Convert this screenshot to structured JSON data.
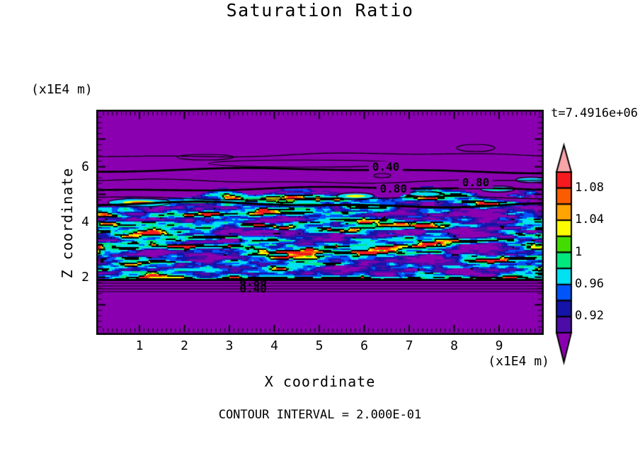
{
  "figure": {
    "title": "Saturation Ratio",
    "time_annotation": "t=7.4916e+06",
    "y_axis_unit": "(x1E4 m)",
    "x_axis_unit": "(x1E4 m)",
    "y_axis_label": "Z coordinate",
    "x_axis_label": "X coordinate",
    "contour_note": "CONTOUR INTERVAL = 2.000E-01"
  },
  "chart_data": {
    "type": "heatmap",
    "title": "Saturation Ratio",
    "xlabel": "X coordinate",
    "ylabel": "Z coordinate",
    "x_unit": "(x1E4 m)",
    "y_unit": "(x1E4 m)",
    "time_annotation": "t=7.4916e+06",
    "contour_interval": "2.000E-01",
    "xlim": [
      0,
      10
    ],
    "ylim": [
      0,
      8
    ],
    "x_ticks": [
      1,
      2,
      3,
      4,
      5,
      6,
      7,
      8,
      9
    ],
    "y_ticks": [
      2,
      4,
      6
    ],
    "grid": false,
    "legend_position": "right-colorbar",
    "colorbar": {
      "tick_labels": [
        "1.08",
        "1.04",
        "1",
        "0.96",
        "0.92"
      ],
      "tick_boundary_indices": [
        1,
        3,
        5,
        7,
        9
      ],
      "segment_value_step": 0.02,
      "segments_top_to_bottom": [
        "#F51A1E",
        "#FB5C00",
        "#FFA400",
        "#FCFC00",
        "#44DC00",
        "#00E87E",
        "#00E1F2",
        "#0055FA",
        "#1414A8",
        "#4B0CA8"
      ],
      "over_arrow_color": "#F8A4A8",
      "under_arrow_color": "#8A00B0"
    },
    "background_value_color": "#8A00B0",
    "contour_line_color": "#000000",
    "contour_labels": [
      {
        "text": "0.40",
        "x": 6.48,
        "z": 5.99,
        "region": "upper"
      },
      {
        "text": "0.80",
        "x": 6.65,
        "z": 5.19,
        "region": "upper"
      },
      {
        "text": "0.80",
        "x": 8.48,
        "z": 5.42,
        "region": "upper"
      },
      {
        "text": "0.80",
        "x": 3.53,
        "z": 1.81,
        "region": "lower"
      },
      {
        "text": "0.40",
        "x": 3.53,
        "z": 1.58,
        "region": "lower"
      }
    ],
    "field_summary": {
      "description": "Turbulent high-saturation band of horizontally elongated streaks (cyan/blue base, green-yellow cores with black contour outlines, occasional orange-red maxima) between z=2 and z=4.8; uniform low-saturation purple elsewhere; smooth wavy 0.40/0.80 contour lines above the band (z=4.8..6.6) and flat straight contours just below z=2.",
      "saturated_band_z_range": [
        2.0,
        4.8
      ],
      "upper_contours_z_range": [
        4.8,
        6.6
      ],
      "lower_contours_z_range": [
        1.5,
        2.0
      ]
    }
  },
  "page": {
    "background": "#FFFFFF",
    "frame_color": "#000000",
    "text_color": "#000000"
  }
}
